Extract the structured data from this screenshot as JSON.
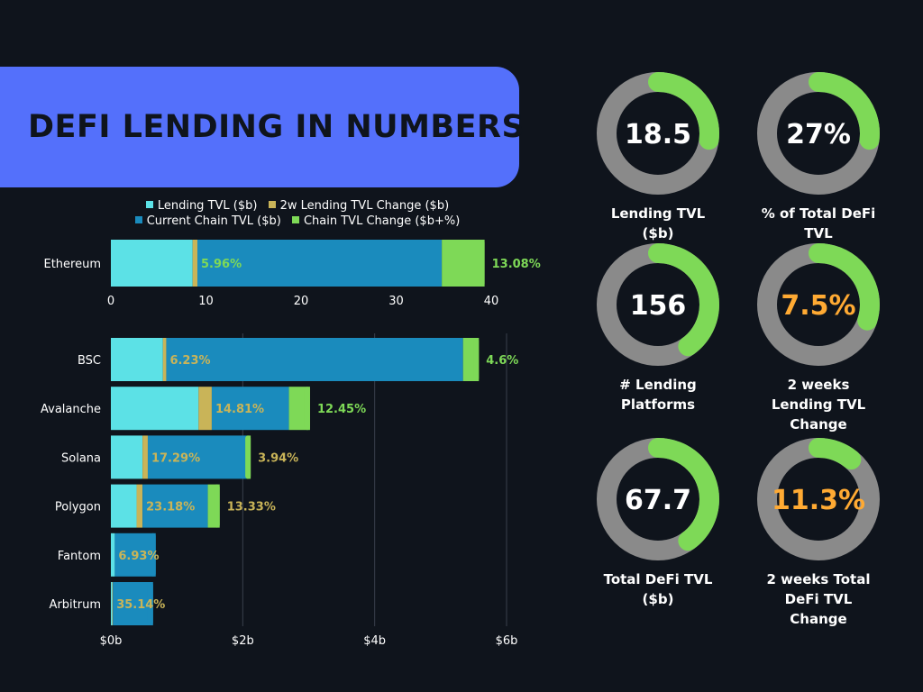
{
  "title": "DEFI LENDING IN NUMBERS",
  "colors": {
    "background": "#0f141c",
    "banner": "#5470fb",
    "lending_tvl": "#5ce1e6",
    "lending_change": "#c9b458",
    "chain_tvl": "#1a8bbd",
    "chain_change": "#7ed957",
    "ring_track": "#8a8a8a",
    "ring_fill": "#7ed957",
    "highlight_value": "#ffaa33"
  },
  "legend": {
    "lending_tvl": "Lending TVL ($b)",
    "lending_change": "2w Lending TVL Change ($b)",
    "chain_tvl": "Current Chain TVL ($b)",
    "chain_change": "Chain TVL Change ($b+%)"
  },
  "chart_data": [
    {
      "type": "bar",
      "orientation": "horizontal",
      "stacked": true,
      "categories": [
        "Ethereum"
      ],
      "series": [
        {
          "name": "Lending TVL ($b)",
          "values": [
            8.6
          ]
        },
        {
          "name": "2w Lending TVL Change ($b)",
          "values": [
            0.5
          ]
        },
        {
          "name": "Current Chain TVL ($b)",
          "values": [
            25.7
          ]
        },
        {
          "name": "Chain TVL Change ($b+%)",
          "values": [
            4.5
          ]
        }
      ],
      "labels": {
        "lending_change_pct": [
          "5.96%"
        ],
        "chain_change_pct": [
          "13.08%"
        ]
      },
      "xticks": [
        "0",
        "10",
        "20",
        "30",
        "40"
      ],
      "xlim": [
        0,
        40
      ],
      "grid": false
    },
    {
      "type": "bar",
      "orientation": "horizontal",
      "stacked": true,
      "categories": [
        "BSC",
        "Avalanche",
        "Solana",
        "Polygon",
        "Fantom",
        "Arbitrum"
      ],
      "series": [
        {
          "name": "Lending TVL ($b)",
          "values": [
            0.79,
            1.33,
            0.48,
            0.39,
            0.06,
            0.02
          ]
        },
        {
          "name": "2w Lending TVL Change ($b)",
          "values": [
            0.05,
            0.2,
            0.08,
            0.09,
            0.0,
            0.01
          ]
        },
        {
          "name": "Current Chain TVL ($b)",
          "values": [
            4.5,
            1.17,
            1.5,
            0.99,
            0.62,
            0.61
          ]
        },
        {
          "name": "Chain TVL Change ($b+%)",
          "values": [
            0.24,
            0.32,
            0.06,
            0.18,
            0.0,
            0.0
          ]
        }
      ],
      "labels": {
        "lending_change_pct": [
          "6.23%",
          "14.81%",
          "17.29%",
          "23.18%",
          "6.93%",
          "35.14%"
        ],
        "chain_change_pct": [
          "4.6%",
          "12.45%",
          "3.94%",
          "13.33%",
          "",
          ""
        ]
      },
      "xticks": [
        "$0b",
        "$2b",
        "$4b",
        "$6b"
      ],
      "xlim": [
        0,
        6
      ],
      "grid": true
    }
  ],
  "kpis": [
    {
      "value": "18.5",
      "label": "Lending TVL ($b)",
      "fraction": 0.27,
      "highlight": false
    },
    {
      "value": "27%",
      "label": "% of Total DeFi TVL",
      "fraction": 0.27,
      "highlight": false
    },
    {
      "value": "156",
      "label": "# Lending Platforms",
      "fraction": 0.4,
      "highlight": false
    },
    {
      "value": "7.5%",
      "label": "2 weeks Lending TVL Change",
      "fraction": 0.3,
      "highlight": true
    },
    {
      "value": "67.7",
      "label": "Total DeFi TVL ($b)",
      "fraction": 0.4,
      "highlight": false
    },
    {
      "value": "11.3%",
      "label": "2 weeks Total DeFi TVL Change",
      "fraction": 0.11,
      "highlight": true
    }
  ]
}
